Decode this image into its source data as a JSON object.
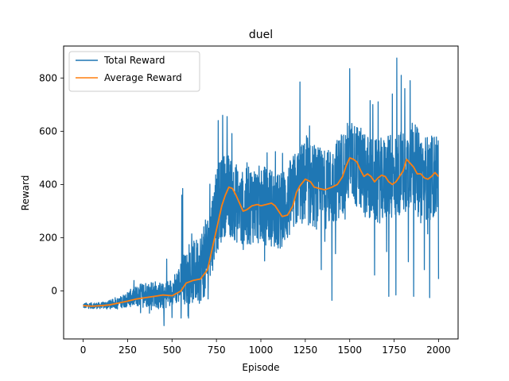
{
  "chart_data": {
    "type": "line",
    "title": "duel",
    "xlabel": "Episode",
    "ylabel": "Reward",
    "xlim": [
      -110,
      2110
    ],
    "ylim": [
      -180,
      920
    ],
    "xticks": [
      0,
      250,
      500,
      750,
      1000,
      1250,
      1500,
      1750,
      2000
    ],
    "yticks": [
      0,
      200,
      400,
      600,
      800
    ],
    "legend": {
      "position": "top-left"
    },
    "grid": false,
    "colors": {
      "total": "#1f77b4",
      "average": "#ff7f0e"
    },
    "series": [
      {
        "name": "Total Reward",
        "noisy": true,
        "anchors": [
          [
            0,
            -55,
            10
          ],
          [
            100,
            -55,
            12
          ],
          [
            200,
            -45,
            20
          ],
          [
            250,
            -30,
            30
          ],
          [
            300,
            -20,
            40
          ],
          [
            350,
            -10,
            50
          ],
          [
            400,
            -10,
            50
          ],
          [
            450,
            -20,
            50
          ],
          [
            500,
            0,
            50
          ],
          [
            550,
            30,
            80
          ],
          [
            600,
            60,
            110
          ],
          [
            650,
            80,
            130
          ],
          [
            700,
            140,
            150
          ],
          [
            750,
            300,
            160
          ],
          [
            800,
            370,
            160
          ],
          [
            850,
            340,
            150
          ],
          [
            900,
            300,
            150
          ],
          [
            950,
            330,
            150
          ],
          [
            1000,
            320,
            150
          ],
          [
            1050,
            320,
            150
          ],
          [
            1100,
            290,
            150
          ],
          [
            1150,
            330,
            150
          ],
          [
            1200,
            380,
            150
          ],
          [
            1250,
            410,
            160
          ],
          [
            1300,
            390,
            160
          ],
          [
            1350,
            380,
            150
          ],
          [
            1400,
            390,
            150
          ],
          [
            1450,
            440,
            160
          ],
          [
            1500,
            490,
            160
          ],
          [
            1550,
            460,
            160
          ],
          [
            1600,
            430,
            160
          ],
          [
            1650,
            410,
            160
          ],
          [
            1700,
            420,
            160
          ],
          [
            1750,
            430,
            160
          ],
          [
            1800,
            450,
            160
          ],
          [
            1850,
            480,
            160
          ],
          [
            1900,
            440,
            160
          ],
          [
            1950,
            420,
            160
          ],
          [
            2000,
            440,
            160
          ]
        ],
        "peaks": [
          [
            1765,
            875
          ],
          [
            1500,
            835
          ],
          [
            1790,
            810
          ],
          [
            1840,
            790
          ],
          [
            1220,
            785
          ],
          [
            1950,
            780
          ],
          [
            1740,
            740
          ],
          [
            1615,
            715
          ],
          [
            1950,
            720
          ],
          [
            1630,
            700
          ],
          [
            1810,
            760
          ],
          [
            785,
            660
          ],
          [
            810,
            655
          ],
          [
            760,
            640
          ],
          [
            470,
            120
          ],
          [
            560,
            385
          ],
          [
            555,
            360
          ]
        ],
        "troughs": [
          [
            455,
            -130
          ],
          [
            500,
            -100
          ],
          [
            1400,
            -35
          ],
          [
            1860,
            -20
          ],
          [
            1720,
            -20
          ],
          [
            1760,
            -15
          ],
          [
            1950,
            -25
          ],
          [
            2000,
            45
          ],
          [
            1640,
            60
          ],
          [
            1830,
            110
          ],
          [
            1920,
            80
          ],
          [
            1340,
            80
          ],
          [
            1420,
            140
          ]
        ]
      },
      {
        "name": "Average Reward",
        "x": [
          0,
          50,
          100,
          150,
          200,
          250,
          300,
          350,
          400,
          450,
          500,
          550,
          580,
          620,
          660,
          700,
          750,
          780,
          800,
          820,
          840,
          860,
          880,
          900,
          920,
          950,
          980,
          1000,
          1030,
          1060,
          1080,
          1100,
          1120,
          1150,
          1180,
          1200,
          1220,
          1250,
          1280,
          1300,
          1330,
          1360,
          1400,
          1430,
          1460,
          1480,
          1500,
          1520,
          1540,
          1560,
          1580,
          1600,
          1620,
          1640,
          1660,
          1680,
          1700,
          1720,
          1740,
          1760,
          1780,
          1800,
          1820,
          1840,
          1860,
          1880,
          1900,
          1920,
          1940,
          1960,
          1980,
          2000
        ],
        "y": [
          -55,
          -57,
          -55,
          -52,
          -45,
          -38,
          -30,
          -25,
          -20,
          -15,
          -18,
          0,
          30,
          40,
          45,
          80,
          230,
          320,
          360,
          390,
          385,
          360,
          330,
          300,
          305,
          320,
          325,
          320,
          325,
          330,
          320,
          300,
          280,
          285,
          320,
          370,
          395,
          420,
          410,
          390,
          385,
          380,
          390,
          400,
          430,
          470,
          500,
          495,
          485,
          455,
          430,
          440,
          430,
          410,
          425,
          435,
          430,
          410,
          400,
          410,
          430,
          450,
          495,
          480,
          465,
          440,
          440,
          425,
          420,
          430,
          445,
          430
        ]
      }
    ]
  }
}
